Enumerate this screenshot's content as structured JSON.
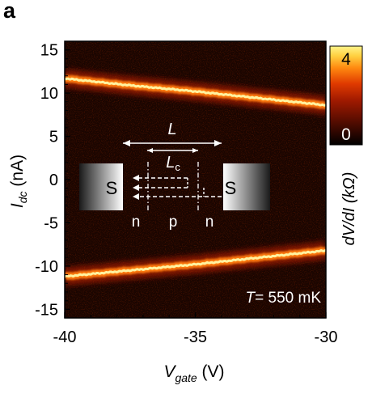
{
  "panel_label": "a",
  "chart_data": {
    "type": "heatmap",
    "xlabel_main": "V",
    "xlabel_sub": "gate",
    "xlabel_unit": " (V)",
    "ylabel_main": "I",
    "ylabel_sub": "dc",
    "ylabel_unit": " (nA)",
    "xlim": [
      -40,
      -30
    ],
    "ylim": [
      -16,
      16
    ],
    "x_ticks": [
      -40,
      -35,
      -30
    ],
    "y_ticks": [
      15,
      10,
      5,
      0,
      -5,
      -10,
      -15
    ],
    "colorbar": {
      "label": "dV/dI (kΩ)",
      "range": [
        0,
        4
      ],
      "tick_labels": [
        "4",
        "0"
      ],
      "colors": [
        "#000000",
        "#5a0d00",
        "#a01a00",
        "#e03a00",
        "#ff8a10",
        "#ffd040",
        "#fff48a"
      ]
    },
    "annotation": "T = 550 mK",
    "annotation_T": "T",
    "annotation_rest": "= 550 mK",
    "switching_current_positive": {
      "x": [
        -40,
        -37.5,
        -35,
        -32.5,
        -30
      ],
      "y": [
        11.7,
        10.9,
        10.2,
        9.4,
        8.6
      ]
    },
    "switching_current_negative": {
      "x": [
        -40,
        -37.5,
        -35,
        -32.5,
        -30
      ],
      "y": [
        -11.2,
        -10.5,
        -9.8,
        -9.0,
        -8.2
      ]
    },
    "inset": {
      "lead_label": "S",
      "length_label": "L",
      "length_c_main": "L",
      "length_c_sub": "c",
      "regions": [
        "n",
        "p",
        "n"
      ]
    }
  }
}
